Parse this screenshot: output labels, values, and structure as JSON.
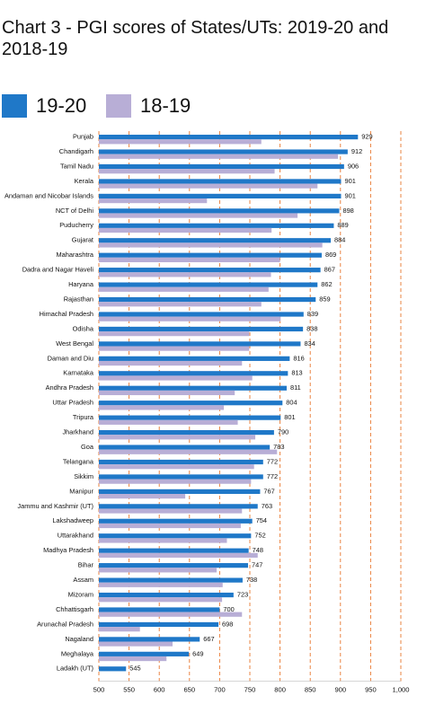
{
  "title": "Chart 3 - PGI scores of States/UTs: 2019-20 and 2018-19",
  "legend": {
    "s1": {
      "label": "19-20",
      "color": "#1f78c8"
    },
    "s2": {
      "label": "18-19",
      "color": "#b8aed6"
    }
  },
  "chart_data": {
    "type": "bar",
    "orientation": "horizontal",
    "categories": [
      "Punjab",
      "Chandigarh",
      "Tamil Nadu",
      "Kerala",
      "Andaman and Nicobar Islands",
      "NCT of Delhi",
      "Puducherry",
      "Gujarat",
      "Maharashtra",
      "Dadra and Nagar Haveli",
      "Haryana",
      "Rajasthan",
      "Himachal Pradesh",
      "Odisha",
      "West Bengal",
      "Daman and Diu",
      "Karnataka",
      "Andhra Pradesh",
      "Uttar Pradesh",
      "Tripura",
      "Jharkhand",
      "Goa",
      "Telangana",
      "Sikkim",
      "Manipur",
      "Jammu and Kashmir (UT)",
      "Lakshadweep",
      "Uttarakhand",
      "Madhya Pradesh",
      "Bihar",
      "Assam",
      "Mizoram",
      "Chhattisgarh",
      "Arunachal Pradesh",
      "Nagaland",
      "Meghalaya",
      "Ladakh (UT)"
    ],
    "series": [
      {
        "name": "19-20",
        "values": [
          929,
          912,
          906,
          901,
          901,
          898,
          889,
          884,
          869,
          867,
          862,
          859,
          839,
          838,
          834,
          816,
          813,
          811,
          804,
          801,
          790,
          783,
          772,
          772,
          767,
          763,
          754,
          752,
          748,
          747,
          738,
          723,
          700,
          698,
          667,
          649,
          545
        ]
      },
      {
        "name": "18-19",
        "values": [
          769,
          896,
          791,
          862,
          679,
          829,
          786,
          870,
          800,
          785,
          781,
          769,
          801,
          749,
          749,
          737,
          754,
          725,
          707,
          730,
          759,
          795,
          757,
          752,
          643,
          737,
          735,
          712,
          763,
          695,
          705,
          704,
          737,
          568,
          622,
          612,
          null
        ]
      }
    ],
    "x_ticks": [
      "500",
      "550",
      "600",
      "650",
      "700",
      "750",
      "800",
      "850",
      "900",
      "950",
      "1,000"
    ],
    "xlim": [
      500,
      1000
    ],
    "data_labels": "19-20 values",
    "grid": "vertical dashed orange lines"
  }
}
